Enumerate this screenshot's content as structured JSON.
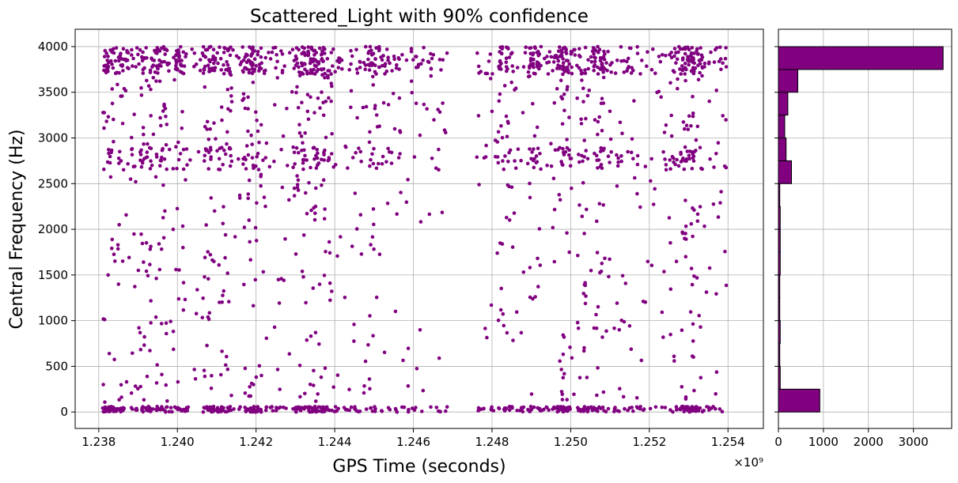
{
  "chart_data": [
    {
      "type": "scatter",
      "title": "Scattered_Light with 90% confidence",
      "xlabel": "GPS Time (seconds)",
      "ylabel": "Central Frequency (Hz)",
      "x_offset_label": "×10⁹",
      "xlim": [
        1.2374,
        1.2549
      ],
      "ylim": [
        -180,
        4190
      ],
      "xticks": [
        1.238,
        1.24,
        1.242,
        1.244,
        1.246,
        1.248,
        1.25,
        1.252,
        1.254
      ],
      "xtick_labels": [
        "1.238",
        "1.240",
        "1.242",
        "1.244",
        "1.246",
        "1.248",
        "1.250",
        "1.252",
        "1.254"
      ],
      "yticks": [
        0,
        500,
        1000,
        1500,
        2000,
        2500,
        3000,
        3500,
        4000
      ],
      "ytick_labels": [
        "0",
        "500",
        "1000",
        "1500",
        "2000",
        "2500",
        "3000",
        "3500",
        "4000"
      ],
      "grid": true,
      "color": "#800080",
      "x_range": [
        1.2381,
        1.254
      ],
      "gap": [
        1.2469,
        1.2476
      ],
      "dense_columns": [
        1.2382,
        1.2385,
        1.2392,
        1.2396,
        1.2401,
        1.2408,
        1.2412,
        1.2418,
        1.242,
        1.2431,
        1.2434,
        1.2436,
        1.2438,
        1.245,
        1.2483,
        1.2491,
        1.2497,
        1.2499,
        1.2503,
        1.2507,
        1.2528,
        1.253,
        1.2532
      ],
      "frequency_bands": [
        30,
        2780,
        3480,
        3750,
        3900,
        3990
      ]
    },
    {
      "type": "bar",
      "orientation": "horizontal",
      "bins": [
        [
          0,
          250
        ],
        [
          250,
          500
        ],
        [
          500,
          750
        ],
        [
          750,
          1000
        ],
        [
          1000,
          1250
        ],
        [
          1250,
          1500
        ],
        [
          1500,
          1750
        ],
        [
          1750,
          2000
        ],
        [
          2000,
          2250
        ],
        [
          2250,
          2500
        ],
        [
          2500,
          2750
        ],
        [
          2750,
          3000
        ],
        [
          3000,
          3250
        ],
        [
          3250,
          3500
        ],
        [
          3500,
          3750
        ],
        [
          3750,
          4000
        ]
      ],
      "values": [
        920,
        40,
        30,
        40,
        30,
        30,
        40,
        40,
        40,
        30,
        290,
        170,
        140,
        210,
        430,
        3660
      ],
      "xticks": [
        0,
        1000,
        2000,
        3000
      ],
      "xtick_labels": [
        "0",
        "1000",
        "2000",
        "3000"
      ],
      "xlim": [
        0,
        3850
      ],
      "ylim": [
        -180,
        4190
      ],
      "grid": true,
      "color": "#800080"
    }
  ]
}
